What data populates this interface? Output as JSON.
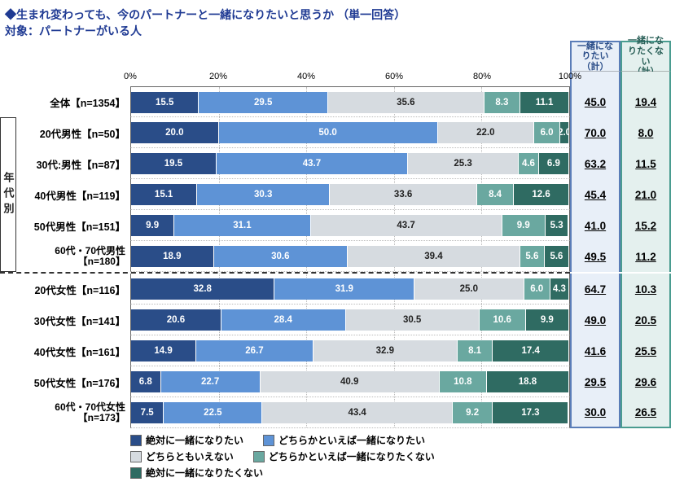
{
  "title": "◆生まれ変わっても、今のパートナーと一緒になりたいと思うか （単一回答）",
  "subtitle": "対象：パートナーがいる人",
  "axis": {
    "ticks": [
      0,
      20,
      40,
      60,
      80,
      100
    ],
    "suffix": "%"
  },
  "side_label": "年代別",
  "columns": {
    "a": {
      "label": "一緒になりたい（計）",
      "color": "#5a7db8",
      "bg": "#e8eff8"
    },
    "b": {
      "label": "一緒になりたくない（計）",
      "color": "#4a9c90",
      "bg": "#e4f0ee"
    }
  },
  "series": {
    "colors": [
      "#2a4d88",
      "#5e93d6",
      "#d6dbe0",
      "#6aa8a0",
      "#2f6b62"
    ],
    "text_style": [
      "dk",
      "dk",
      "lt",
      "dk",
      "dk"
    ],
    "labels": [
      "絶対に一緒になりたい",
      "どちらかといえば一緒になりたい",
      "どちらともいえない",
      "どちらかといえば一緒になりたくない",
      "絶対に一緒になりたくない"
    ]
  },
  "rows": [
    {
      "label": "全体【n=1354】",
      "v": [
        15.5,
        29.5,
        35.6,
        8.3,
        11.1
      ],
      "a": "45.0",
      "b": "19.4"
    },
    {
      "label": "20代男性【n=50】",
      "v": [
        20.0,
        50.0,
        22.0,
        6.0,
        2.0
      ],
      "a": "70.0",
      "b": "8.0"
    },
    {
      "label": "30代:男性【n=87】",
      "v": [
        19.5,
        43.7,
        25.3,
        4.6,
        6.9
      ],
      "a": "63.2",
      "b": "11.5"
    },
    {
      "label": "40代男性【n=119】",
      "v": [
        15.1,
        30.3,
        33.6,
        8.4,
        12.6
      ],
      "a": "45.4",
      "b": "21.0"
    },
    {
      "label": "50代男性【n=151】",
      "v": [
        9.9,
        31.1,
        43.7,
        9.9,
        5.3
      ],
      "a": "41.0",
      "b": "15.2"
    },
    {
      "label": "60代・70代男性\n【n=180】",
      "v": [
        18.9,
        30.6,
        39.4,
        5.6,
        5.6
      ],
      "a": "49.5",
      "b": "11.2"
    },
    {
      "label": "20代女性【n=116】",
      "v": [
        32.8,
        31.9,
        25.0,
        6.0,
        4.3
      ],
      "a": "64.7",
      "b": "10.3"
    },
    {
      "label": "30代女性【n=141】",
      "v": [
        20.6,
        28.4,
        30.5,
        10.6,
        9.9
      ],
      "a": "49.0",
      "b": "20.5"
    },
    {
      "label": "40代女性【n=161】",
      "v": [
        14.9,
        26.7,
        32.9,
        8.1,
        17.4
      ],
      "a": "41.6",
      "b": "25.5"
    },
    {
      "label": "50代女性【n=176】",
      "v": [
        6.8,
        22.7,
        40.9,
        10.8,
        18.8
      ],
      "a": "29.5",
      "b": "29.6"
    },
    {
      "label": "60代・70代女性\n【n=173】",
      "v": [
        7.5,
        22.5,
        43.4,
        9.2,
        17.3
      ],
      "a": "30.0",
      "b": "26.5"
    }
  ],
  "group_split_after": 5
}
